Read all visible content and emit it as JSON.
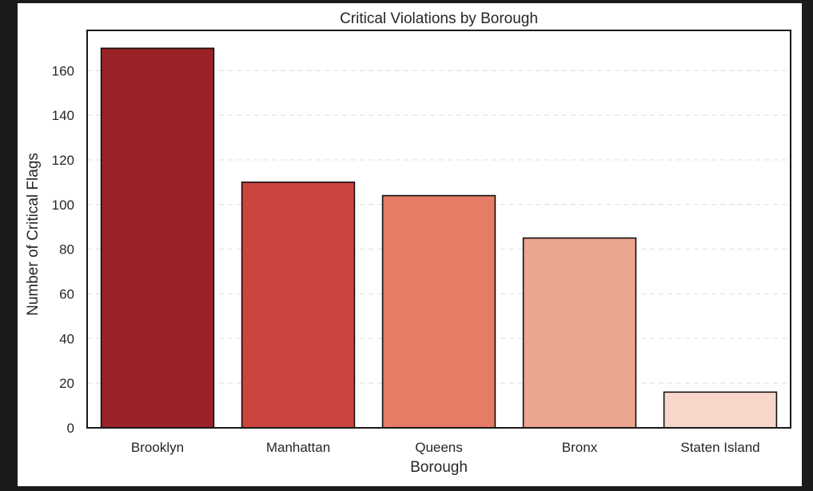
{
  "chart_data": {
    "type": "bar",
    "title": "Critical Violations by Borough",
    "xlabel": "Borough",
    "ylabel": "Number of Critical Flags",
    "categories": [
      "Brooklyn",
      "Manhattan",
      "Queens",
      "Bronx",
      "Staten Island"
    ],
    "values": [
      170,
      110,
      104,
      85,
      16
    ],
    "colors": [
      "#9b2226",
      "#cb4540",
      "#e67c65",
      "#eca58e",
      "#f8d6c9"
    ],
    "ylim": [
      0,
      178
    ],
    "yticks": [
      0,
      20,
      40,
      60,
      80,
      100,
      120,
      140,
      160
    ],
    "grid": "horizontal dashed",
    "legend": "none"
  }
}
